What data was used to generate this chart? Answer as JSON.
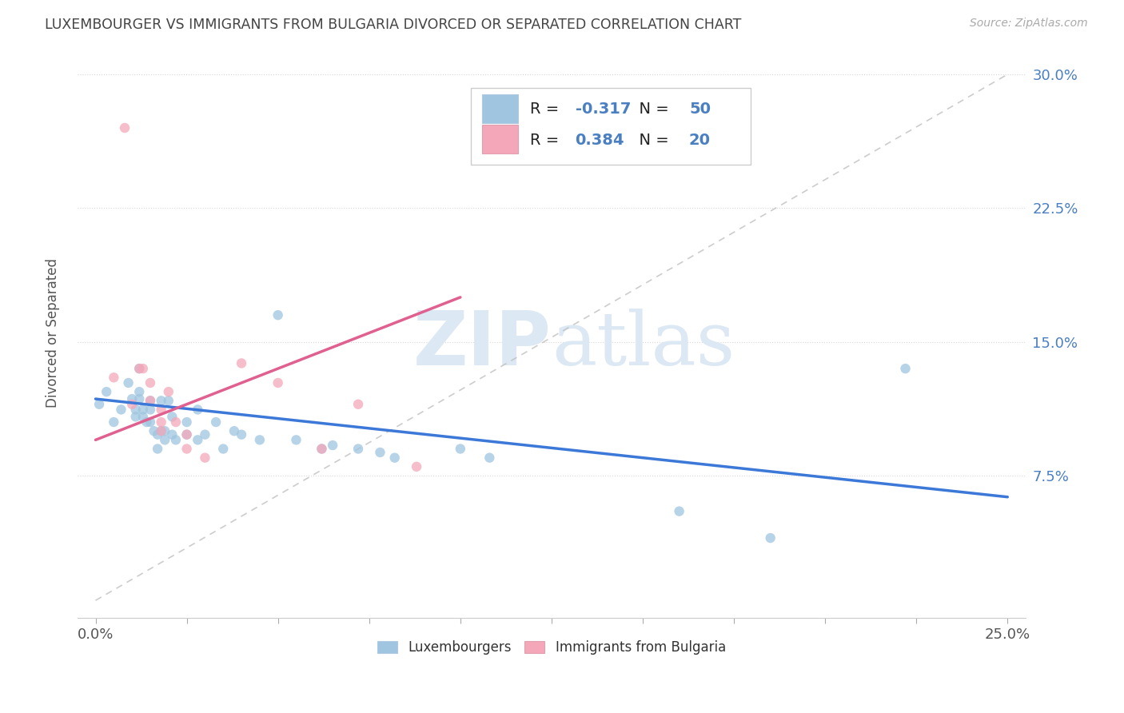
{
  "title": "LUXEMBOURGER VS IMMIGRANTS FROM BULGARIA DIVORCED OR SEPARATED CORRELATION CHART",
  "source": "Source: ZipAtlas.com",
  "ylabel": "Divorced or Separated",
  "xlim": [
    -0.005,
    0.255
  ],
  "ylim": [
    -0.005,
    0.315
  ],
  "r_lux": -0.317,
  "n_lux": 50,
  "r_bul": 0.384,
  "n_bul": 20,
  "color_lux": "#9fc5e0",
  "color_bul": "#f4a7b9",
  "line_color_lux": "#3c78d8",
  "line_color_bul": "#e06090",
  "line_color_dash": "#c0c0c0",
  "watermark_color": "#dce8f3",
  "legend_labels": [
    "Luxembourgers",
    "Immigrants from Bulgaria"
  ],
  "lux_points": [
    [
      0.001,
      0.115
    ],
    [
      0.003,
      0.122
    ],
    [
      0.005,
      0.105
    ],
    [
      0.007,
      0.112
    ],
    [
      0.009,
      0.127
    ],
    [
      0.01,
      0.118
    ],
    [
      0.011,
      0.112
    ],
    [
      0.011,
      0.108
    ],
    [
      0.012,
      0.135
    ],
    [
      0.012,
      0.122
    ],
    [
      0.012,
      0.118
    ],
    [
      0.013,
      0.112
    ],
    [
      0.013,
      0.108
    ],
    [
      0.014,
      0.105
    ],
    [
      0.015,
      0.117
    ],
    [
      0.015,
      0.112
    ],
    [
      0.015,
      0.105
    ],
    [
      0.016,
      0.1
    ],
    [
      0.017,
      0.098
    ],
    [
      0.017,
      0.09
    ],
    [
      0.018,
      0.117
    ],
    [
      0.018,
      0.1
    ],
    [
      0.019,
      0.095
    ],
    [
      0.019,
      0.1
    ],
    [
      0.02,
      0.117
    ],
    [
      0.021,
      0.108
    ],
    [
      0.021,
      0.098
    ],
    [
      0.022,
      0.095
    ],
    [
      0.025,
      0.105
    ],
    [
      0.025,
      0.098
    ],
    [
      0.028,
      0.112
    ],
    [
      0.028,
      0.095
    ],
    [
      0.03,
      0.098
    ],
    [
      0.033,
      0.105
    ],
    [
      0.035,
      0.09
    ],
    [
      0.038,
      0.1
    ],
    [
      0.04,
      0.098
    ],
    [
      0.045,
      0.095
    ],
    [
      0.05,
      0.165
    ],
    [
      0.055,
      0.095
    ],
    [
      0.062,
      0.09
    ],
    [
      0.065,
      0.092
    ],
    [
      0.072,
      0.09
    ],
    [
      0.078,
      0.088
    ],
    [
      0.082,
      0.085
    ],
    [
      0.1,
      0.09
    ],
    [
      0.108,
      0.085
    ],
    [
      0.16,
      0.055
    ],
    [
      0.185,
      0.04
    ],
    [
      0.222,
      0.135
    ]
  ],
  "bul_points": [
    [
      0.005,
      0.13
    ],
    [
      0.008,
      0.27
    ],
    [
      0.01,
      0.115
    ],
    [
      0.012,
      0.135
    ],
    [
      0.013,
      0.135
    ],
    [
      0.015,
      0.127
    ],
    [
      0.015,
      0.117
    ],
    [
      0.018,
      0.112
    ],
    [
      0.018,
      0.105
    ],
    [
      0.018,
      0.1
    ],
    [
      0.02,
      0.122
    ],
    [
      0.022,
      0.105
    ],
    [
      0.025,
      0.098
    ],
    [
      0.025,
      0.09
    ],
    [
      0.03,
      0.085
    ],
    [
      0.04,
      0.138
    ],
    [
      0.05,
      0.127
    ],
    [
      0.062,
      0.09
    ],
    [
      0.072,
      0.115
    ],
    [
      0.088,
      0.08
    ]
  ],
  "lux_line_x": [
    0.0,
    0.25
  ],
  "lux_line_y": [
    0.118,
    0.063
  ],
  "bul_line_x": [
    0.0,
    0.1
  ],
  "bul_line_y": [
    0.095,
    0.175
  ],
  "dash_line_x": [
    0.0,
    0.25
  ],
  "dash_line_y": [
    0.005,
    0.3
  ]
}
